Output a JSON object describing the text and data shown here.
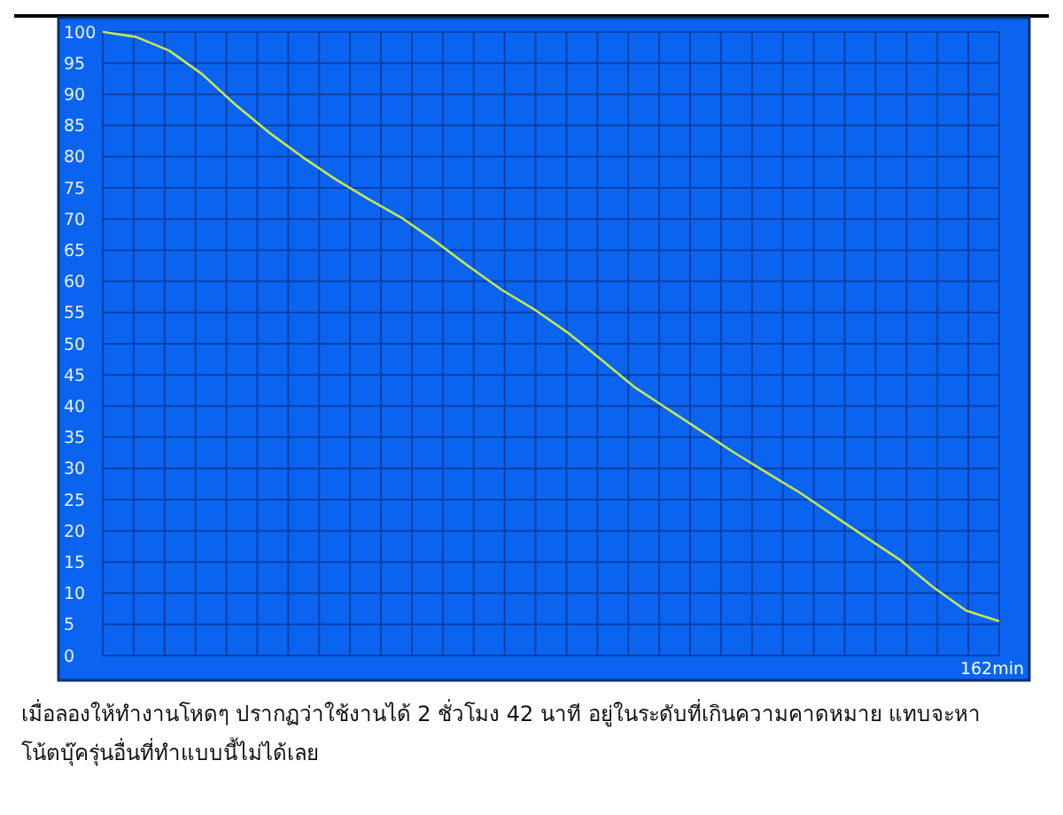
{
  "chart_data": {
    "type": "line",
    "categories": [
      null,
      null,
      null,
      null,
      null,
      null,
      null,
      null,
      null,
      null,
      null,
      null,
      null,
      null,
      null,
      null,
      null,
      null,
      null,
      null,
      null,
      null,
      null,
      null,
      null,
      null,
      null,
      null
    ],
    "series": [
      {
        "color": "#c8e650",
        "values": [
          100,
          99.2,
          97,
          93.2,
          88.3,
          83.9,
          80,
          76.4,
          73.2,
          70.2,
          66.5,
          62.5,
          58.7,
          55.5,
          51.8,
          47.5,
          43.1,
          39.6,
          36.1,
          32.6,
          29.3,
          26.1,
          22.5,
          18.9,
          15.4,
          11,
          7.2,
          5.5
        ]
      }
    ],
    "ylim": [
      0,
      100
    ],
    "yticks": [
      0,
      5,
      10,
      15,
      20,
      25,
      30,
      35,
      40,
      45,
      50,
      55,
      60,
      65,
      70,
      75,
      80,
      85,
      90,
      95,
      100
    ],
    "grid": true,
    "marker": "none",
    "line_style": "solid",
    "annotations": [
      "162min",
      "เมื่อลองให้ทำงานโหดๆ ปรากฏว่าใช้งานได้ 2 ชั่วโมง 42 นาที อยู่ในระดับที่เกินความคาดหมาย แทบจะหาโน้ตบุ๊ครุ่นอื่นที่ทำแบบนี้ไม่ได้เลย"
    ]
  }
}
